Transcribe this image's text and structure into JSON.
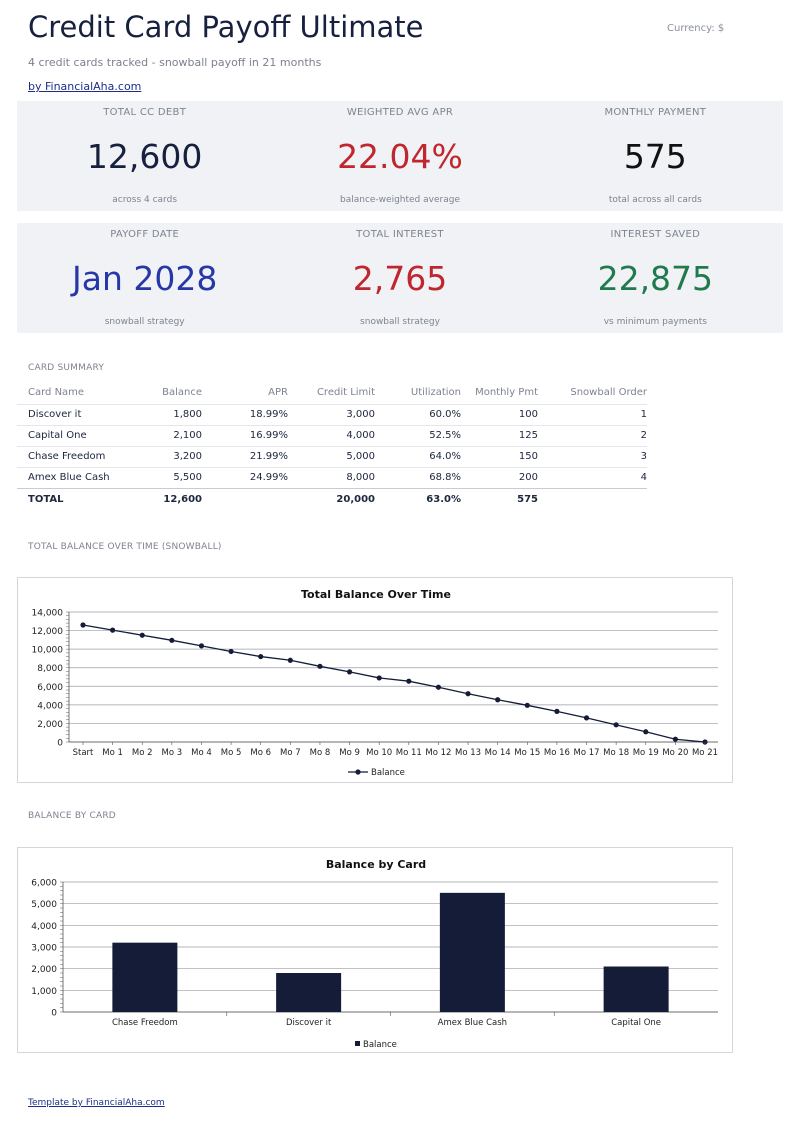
{
  "header": {
    "title": "Credit Card Payoff Ultimate",
    "currency": "Currency: $",
    "subtitle": "4 credit cards tracked - snowball payoff in 21 months",
    "byline": "by FinancialAha.com"
  },
  "kpis_row1": [
    {
      "label": "TOTAL CC DEBT",
      "value": "12,600",
      "sub": "across 4 cards",
      "color": "#17213f"
    },
    {
      "label": "WEIGHTED AVG APR",
      "value": "22.04%",
      "sub": "balance-weighted average",
      "color": "#c0262d"
    },
    {
      "label": "MONTHLY PAYMENT",
      "value": "575",
      "sub": "total across all cards",
      "color": "#111111"
    }
  ],
  "kpis_row2": [
    {
      "label": "PAYOFF DATE",
      "value": "Jan 2028",
      "sub": "snowball strategy",
      "color": "#2638a8"
    },
    {
      "label": "TOTAL INTEREST",
      "value": "2,765",
      "sub": "snowball strategy",
      "color": "#c0262d"
    },
    {
      "label": "INTEREST SAVED",
      "value": "22,875",
      "sub": "vs minimum payments",
      "color": "#1f7a4d"
    }
  ],
  "card_summary": {
    "section_label": "CARD SUMMARY",
    "columns": [
      "Card Name",
      "Balance",
      "APR",
      "Credit Limit",
      "Utilization",
      "Monthly Pmt",
      "Snowball Order"
    ],
    "rows": [
      [
        "Discover it",
        "1,800",
        "18.99%",
        "3,000",
        "60.0%",
        "100",
        "1"
      ],
      [
        "Capital One",
        "2,100",
        "16.99%",
        "4,000",
        "52.5%",
        "125",
        "2"
      ],
      [
        "Chase Freedom",
        "3,200",
        "21.99%",
        "5,000",
        "64.0%",
        "150",
        "3"
      ],
      [
        "Amex Blue Cash",
        "5,500",
        "24.99%",
        "8,000",
        "68.8%",
        "200",
        "4"
      ]
    ],
    "total": [
      "TOTAL",
      "12,600",
      "",
      "20,000",
      "63.0%",
      "575",
      ""
    ]
  },
  "line_section_label": "TOTAL BALANCE OVER TIME (SNOWBALL)",
  "bar_section_label": "BALANCE BY CARD",
  "chart_data": [
    {
      "type": "line",
      "title": "Total Balance Over Time",
      "xlabel": "",
      "ylabel": "",
      "x": [
        "Start",
        "Mo 1",
        "Mo 2",
        "Mo 3",
        "Mo 4",
        "Mo 5",
        "Mo 6",
        "Mo 7",
        "Mo 8",
        "Mo 9",
        "Mo 10",
        "Mo 11",
        "Mo 12",
        "Mo 13",
        "Mo 14",
        "Mo 15",
        "Mo 16",
        "Mo 17",
        "Mo 18",
        "Mo 19",
        "Mo 20",
        "Mo 21"
      ],
      "series": [
        {
          "name": "Balance",
          "values": [
            12600,
            12050,
            11500,
            10950,
            10350,
            9750,
            9200,
            8800,
            8150,
            7550,
            6900,
            6550,
            5900,
            5200,
            4550,
            3950,
            3300,
            2600,
            1850,
            1100,
            300,
            0
          ]
        }
      ],
      "yticks": [
        "0",
        "2,000",
        "4,000",
        "6,000",
        "8,000",
        "10,000",
        "12,000",
        "14,000"
      ],
      "ylim": [
        0,
        14000
      ],
      "grid": true,
      "legend": "bottom",
      "color": "#141c38"
    },
    {
      "type": "bar",
      "title": "Balance by Card",
      "xlabel": "",
      "ylabel": "",
      "categories": [
        "Chase Freedom",
        "Discover it",
        "Amex Blue Cash",
        "Capital One"
      ],
      "series": [
        {
          "name": "Balance",
          "values": [
            3200,
            1800,
            5500,
            2100
          ]
        }
      ],
      "yticks": [
        "0",
        "1,000",
        "2,000",
        "3,000",
        "4,000",
        "5,000",
        "6,000"
      ],
      "ylim": [
        0,
        6000
      ],
      "grid": true,
      "legend": "bottom",
      "color": "#141c38"
    }
  ],
  "footer": "Template by FinancialAha.com"
}
